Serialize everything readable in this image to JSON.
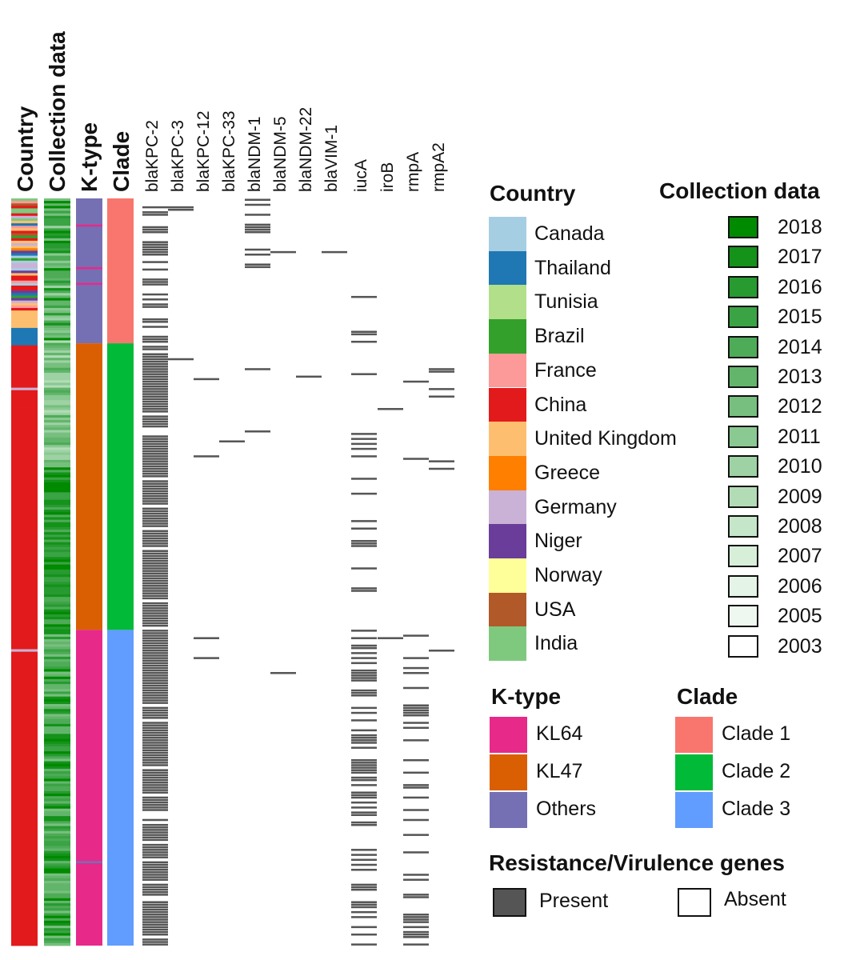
{
  "chart_data": {
    "type": "heatmap",
    "columns": {
      "metadata": [
        "Country",
        "Collection data",
        "K-type",
        "Clade"
      ],
      "genes": [
        "blaKPC-2",
        "blaKPC-3",
        "blaKPC-12",
        "blaKPC-33",
        "blaNDM-1",
        "blaNDM-5",
        "blaNDM-22",
        "blaVIM-1",
        "iucA",
        "iroB",
        "rmpA",
        "rmpA2"
      ]
    },
    "legend_placement": "right",
    "country_legend": {
      "title": "Country",
      "entries": [
        {
          "label": "Canada",
          "color": "#a6cee3"
        },
        {
          "label": "Thailand",
          "color": "#1f78b4"
        },
        {
          "label": "Tunisia",
          "color": "#b2df8a"
        },
        {
          "label": "Brazil",
          "color": "#33a02c"
        },
        {
          "label": "France",
          "color": "#fb9a99"
        },
        {
          "label": "China",
          "color": "#e31a1c"
        },
        {
          "label": "United Kingdom",
          "color": "#fdbf6f"
        },
        {
          "label": "Greece",
          "color": "#ff7f00"
        },
        {
          "label": "Germany",
          "color": "#cab2d6"
        },
        {
          "label": "Niger",
          "color": "#6a3d9a"
        },
        {
          "label": "Norway",
          "color": "#ffff99"
        },
        {
          "label": "USA",
          "color": "#b15928"
        },
        {
          "label": "India",
          "color": "#7fc97f"
        }
      ]
    },
    "collection_legend": {
      "title": "Collection data",
      "entries": [
        {
          "label": "2018",
          "color": "#008a00"
        },
        {
          "label": "2017",
          "color": "#14921a"
        },
        {
          "label": "2016",
          "color": "#279a30"
        },
        {
          "label": "2015",
          "color": "#3aa344"
        },
        {
          "label": "2014",
          "color": "#4eab57"
        },
        {
          "label": "2013",
          "color": "#62b56b"
        },
        {
          "label": "2012",
          "color": "#77bf7f"
        },
        {
          "label": "2011",
          "color": "#8ac991"
        },
        {
          "label": "2010",
          "color": "#9ed2a4"
        },
        {
          "label": "2009",
          "color": "#b2dcb6"
        },
        {
          "label": "2008",
          "color": "#c5e6c8"
        },
        {
          "label": "2007",
          "color": "#d7eed9"
        },
        {
          "label": "2006",
          "color": "#e4f4e6"
        },
        {
          "label": "2005",
          "color": "#eff8f0"
        },
        {
          "label": "2003",
          "color": "#ffffff"
        }
      ]
    },
    "ktype_legend": {
      "title": "K-type",
      "entries": [
        {
          "label": "KL64",
          "color": "#e7298a"
        },
        {
          "label": "KL47",
          "color": "#d95f02"
        },
        {
          "label": "Others",
          "color": "#7570b3"
        }
      ]
    },
    "clade_legend": {
      "title": "Clade",
      "entries": [
        {
          "label": "Clade 1",
          "color": "#f8766d"
        },
        {
          "label": "Clade 2",
          "color": "#00ba38"
        },
        {
          "label": "Clade 3",
          "color": "#619cff"
        }
      ]
    },
    "gene_legend": {
      "title": "Resistance/Virulence genes",
      "entries": [
        {
          "label": "Present",
          "color": "#555555"
        },
        {
          "label": "Absent",
          "color": "#ffffff"
        }
      ]
    },
    "samples": {
      "count": 300,
      "ktype_blocks": [
        {
          "label": "Others",
          "from": 0.0,
          "to": 0.1939
        },
        {
          "label": "KL47",
          "from": 0.1939,
          "to": 0.5775
        },
        {
          "label": "KL64",
          "from": 0.5775,
          "to": 1.0
        }
      ],
      "clade_blocks": [
        {
          "label": "Clade 1",
          "from": 0.0,
          "to": 0.1939
        },
        {
          "label": "Clade 2",
          "from": 0.1939,
          "to": 0.5775
        },
        {
          "label": "Clade 3",
          "from": 0.5775,
          "to": 1.0
        }
      ],
      "country_blocks": [
        {
          "label": "Mixed",
          "from": 0.0,
          "to": 0.1528
        },
        {
          "label": "United Kingdom",
          "from": 0.1528,
          "to": 0.1712
        },
        {
          "label": "Thailand",
          "from": 0.1712,
          "to": 0.1939
        },
        {
          "label": "China",
          "from": 0.1939,
          "to": 1.0
        }
      ]
    }
  }
}
